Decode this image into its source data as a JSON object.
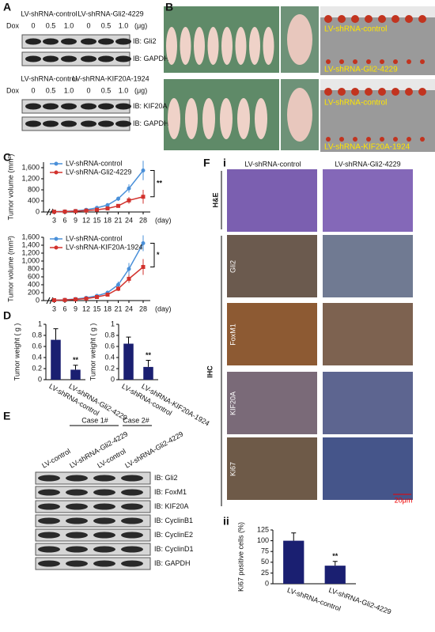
{
  "panel_a": {
    "label": "A",
    "blots": [
      {
        "groups": [
          "LV-shRNA-control",
          "LV-shRNA-Gli2-4229"
        ],
        "dose_label": "Dox",
        "doses": [
          "0",
          "0.5",
          "1.0",
          "0",
          "0.5",
          "1.0"
        ],
        "dose_unit": "(μg)",
        "rows": [
          "IB: Gli2",
          "IB: GAPDH"
        ]
      },
      {
        "groups": [
          "LV-shRNA-control",
          "LV-shRNA-KIF20A-1924"
        ],
        "dose_label": "Dox",
        "doses": [
          "0",
          "0.5",
          "1.0",
          "0",
          "0.5",
          "1.0"
        ],
        "dose_unit": "(μg)",
        "rows": [
          "IB: KIF20A",
          "IB: GAPDH"
        ]
      }
    ]
  },
  "panel_b": {
    "label": "B",
    "photo_labels": [
      "LV-shRNA-control",
      "LV-shRNA-Gli2-4229",
      "LV-shRNA-control",
      "LV-shRNA-KIF20A-1924"
    ]
  },
  "panel_c": {
    "label": "C"
  },
  "panel_d": {
    "label": "D"
  },
  "panel_e": {
    "label": "E",
    "cases": [
      "Case 1#",
      "Case 2#"
    ],
    "lanes": [
      "LV-control",
      "LV-shRNA-Gli2-4229",
      "LV-control",
      "LV-shRNA-Gli2-4229"
    ],
    "rows": [
      "IB: Gli2",
      "IB: FoxM1",
      "IB: KIF20A",
      "IB: CyclinB1",
      "IB: CyclinE2",
      "IB: CyclinD1",
      "IB: GAPDH"
    ]
  },
  "panel_f": {
    "label": "F",
    "sub_i": "i",
    "sub_ii": "ii",
    "columns": [
      "LV-shRNA-control",
      "LV-shRNA-Gli2-4229"
    ],
    "stain_groups": [
      "H&E",
      "IHC"
    ],
    "ihc_rows": [
      "Gli2",
      "FoxM1",
      "KIF20A",
      "Ki67"
    ],
    "scale_bar": "20μm"
  },
  "chart_data": [
    {
      "type": "line",
      "ylabel": "Tumor volume (mm³)",
      "xlabel": "(day)",
      "x": [
        3,
        6,
        9,
        12,
        15,
        18,
        21,
        24,
        28
      ],
      "xlim": [
        0,
        30
      ],
      "xticks": [
        3,
        6,
        9,
        12,
        15,
        18,
        21,
        24,
        28
      ],
      "ylim": [
        0,
        1800
      ],
      "yticks": [
        0,
        400,
        800,
        {
          "value": 1200,
          "label": "1,200"
        },
        {
          "value": 1600,
          "label": "1,600"
        }
      ],
      "series": [
        {
          "name": "LV-shRNA-control",
          "color": "#4a90d9",
          "values": [
            10,
            20,
            40,
            80,
            150,
            250,
            480,
            850,
            1500
          ],
          "errors": [
            5,
            8,
            12,
            20,
            30,
            50,
            80,
            150,
            350
          ]
        },
        {
          "name": "LV-shRNA-Gli2-4229",
          "color": "#d2322d",
          "values": [
            10,
            15,
            30,
            50,
            80,
            130,
            220,
            420,
            550
          ],
          "errors": [
            5,
            6,
            10,
            15,
            20,
            30,
            60,
            120,
            250
          ]
        }
      ],
      "annotation": "**"
    },
    {
      "type": "line",
      "ylabel": "Tumor volume (mm³)",
      "xlabel": "(day)",
      "x": [
        3,
        6,
        9,
        12,
        15,
        18,
        21,
        24,
        28
      ],
      "xlim": [
        0,
        30
      ],
      "xticks": [
        3,
        6,
        9,
        12,
        15,
        18,
        21,
        24,
        28
      ],
      "ylim": [
        0,
        1600
      ],
      "yticks": [
        0,
        200,
        400,
        600,
        800,
        {
          "value": 1000,
          "label": "1,000"
        },
        {
          "value": 1200,
          "label": "1,200"
        },
        {
          "value": 1400,
          "label": "1,400"
        },
        {
          "value": 1600,
          "label": "1,600"
        }
      ],
      "series": [
        {
          "name": "LV-shRNA-control",
          "color": "#4a90d9",
          "values": [
            10,
            20,
            40,
            70,
            120,
            200,
            400,
            800,
            1450
          ],
          "errors": [
            5,
            8,
            12,
            20,
            30,
            50,
            80,
            150,
            200
          ]
        },
        {
          "name": "LV-shRNA-KIF20A-1924",
          "color": "#d2322d",
          "values": [
            10,
            15,
            30,
            50,
            90,
            150,
            300,
            550,
            850
          ],
          "errors": [
            5,
            6,
            10,
            15,
            20,
            30,
            60,
            100,
            200
          ]
        }
      ],
      "annotation": "*"
    },
    {
      "type": "bar",
      "ylabel": "Tumor weight ( g )",
      "categories": [
        "LV-shRNA-control",
        "LV-shRNA-Gli2-4229"
      ],
      "values": [
        0.72,
        0.18
      ],
      "errors": [
        0.2,
        0.08
      ],
      "color": "#1a1f71",
      "ylim": [
        0,
        1
      ],
      "yticks": [
        0,
        0.2,
        0.4,
        0.6,
        0.8,
        1
      ],
      "annotation": "**"
    },
    {
      "type": "bar",
      "ylabel": "Tumor weight ( g )",
      "categories": [
        "LV-shRNA-control",
        "LV-shRNA-KIF20A-1924"
      ],
      "values": [
        0.65,
        0.23
      ],
      "errors": [
        0.12,
        0.12
      ],
      "color": "#1a1f71",
      "ylim": [
        0,
        1
      ],
      "yticks": [
        0,
        0.2,
        0.4,
        0.6,
        0.8,
        1
      ],
      "annotation": "**"
    },
    {
      "type": "bar",
      "ylabel": "Ki67 positive cells (%)",
      "categories": [
        "LV-shRNA-control",
        "LV-shRNA-Gli2-4229"
      ],
      "values": [
        100,
        42
      ],
      "errors": [
        18,
        10
      ],
      "color": "#1a1f71",
      "ylim": [
        0,
        125
      ],
      "yticks": [
        0,
        25,
        50,
        75,
        100,
        125
      ],
      "annotation": "**"
    }
  ]
}
